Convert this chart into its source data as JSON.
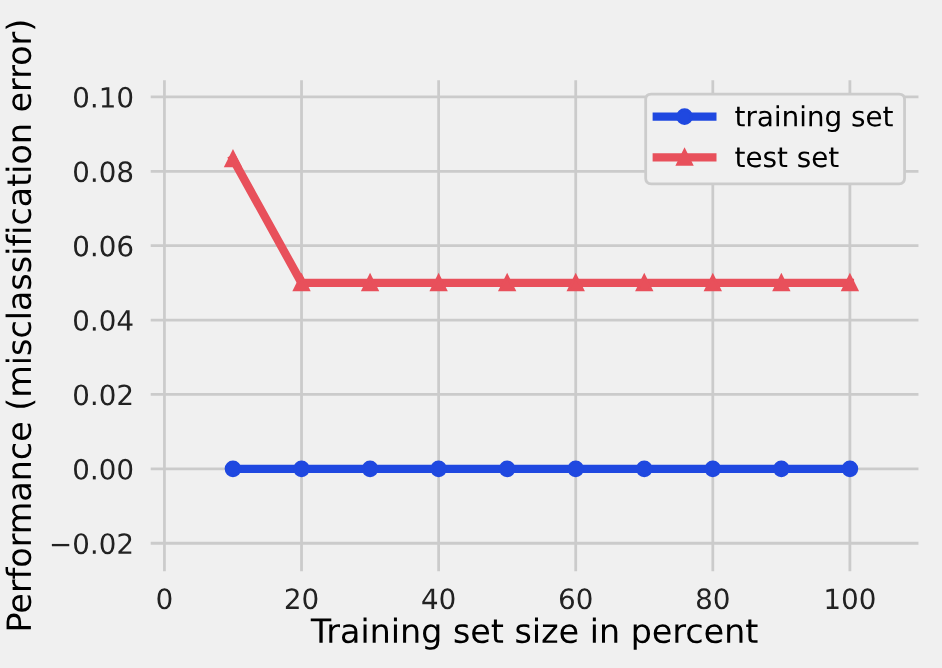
{
  "chart_data": {
    "type": "line",
    "xlabel": "Training set size in percent",
    "ylabel": "Performance (misclassification error)",
    "x": [
      10,
      20,
      30,
      40,
      50,
      60,
      70,
      80,
      90,
      100
    ],
    "series": [
      {
        "name": "training set",
        "color": "#1f48e0",
        "marker": "circle",
        "values": [
          0,
          0,
          0,
          0,
          0,
          0,
          0,
          0,
          0,
          0
        ]
      },
      {
        "name": "test set",
        "color": "#e8505b",
        "marker": "triangle",
        "values": [
          0.0833,
          0.05,
          0.05,
          0.05,
          0.05,
          0.05,
          0.05,
          0.05,
          0.05,
          0.05
        ]
      }
    ],
    "xlim": [
      -2,
      110
    ],
    "xticks": [
      0,
      20,
      40,
      60,
      80,
      100
    ],
    "ylim": [
      -0.0275,
      0.1045
    ],
    "yticks": [
      {
        "value": -0.02,
        "label": "−0.02"
      },
      {
        "value": 0,
        "label": "0.00"
      },
      {
        "value": 0.02,
        "label": "0.02"
      },
      {
        "value": 0.04,
        "label": "0.04"
      },
      {
        "value": 0.06,
        "label": "0.06"
      },
      {
        "value": 0.08,
        "label": "0.08"
      },
      {
        "value": 0.1,
        "label": "0.10"
      }
    ],
    "grid": true,
    "legend": "top right",
    "line_style": "solid"
  }
}
